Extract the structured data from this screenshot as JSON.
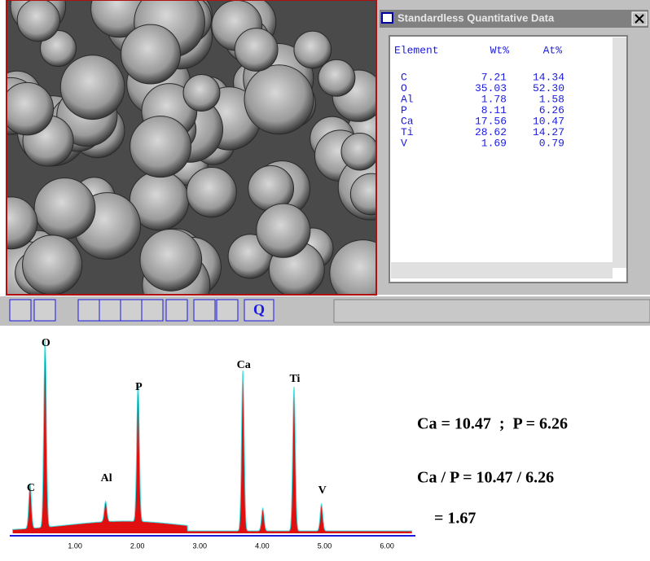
{
  "window": {
    "title": "Standardless Quantitative Data",
    "table": {
      "headers": [
        "Element",
        "Wt%",
        "At%"
      ],
      "rows": [
        [
          "C",
          "7.21",
          "14.34"
        ],
        [
          "O",
          "35.03",
          "52.30"
        ],
        [
          "Al",
          "1.78",
          "1.58"
        ],
        [
          "P",
          "8.11",
          "6.26"
        ],
        [
          "Ca",
          "17.56",
          "10.47"
        ],
        [
          "Ti",
          "28.62",
          "14.27"
        ],
        [
          "V",
          "1.69",
          "0.79"
        ]
      ]
    }
  },
  "toolbar": {
    "last_button": "Q"
  },
  "spectrum": {
    "x_ticks": [
      "1.00",
      "2.00",
      "3.00",
      "4.00",
      "5.00",
      "6.00"
    ],
    "peaks": [
      "C",
      "O",
      "Al",
      "P",
      "Ca",
      "Ti",
      "V"
    ]
  },
  "annotations": [
    "Ca = 10.47  ;  P = 6.26",
    "Ca / P = 10.47 / 6.26",
    "= 1.67"
  ]
}
